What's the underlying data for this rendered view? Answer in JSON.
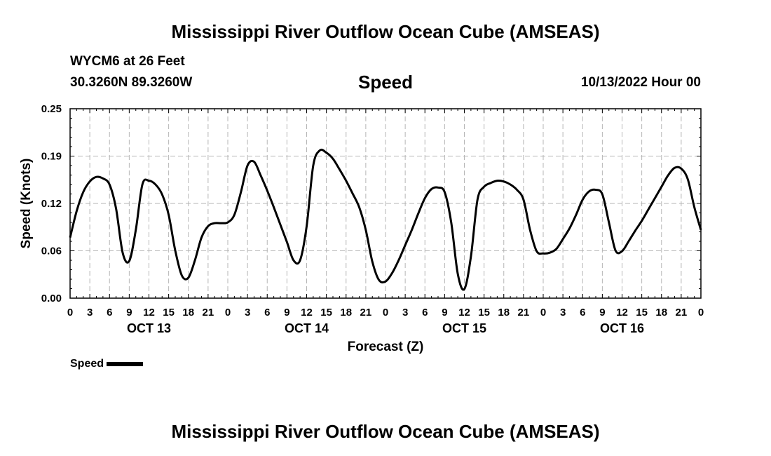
{
  "header": {
    "title": "Mississippi River Outflow Ocean Cube (AMSEAS)",
    "station": "WYCM6 at 26 Feet",
    "coords": "30.3260N  89.3260W",
    "plot_title": "Speed",
    "datetime": "10/13/2022 Hour 00"
  },
  "footer": {
    "title": "Mississippi River Outflow Ocean Cube (AMSEAS)"
  },
  "legend": {
    "label": "Speed",
    "color": "#000000"
  },
  "chart_data": {
    "type": "line",
    "xlabel": "Forecast (Z)",
    "ylabel": "Speed (Knots)",
    "xlim": [
      0,
      96
    ],
    "ylim": [
      0,
      0.25
    ],
    "y_ticks": [
      "0.00",
      "0.06",
      "0.12",
      "0.19",
      "0.25"
    ],
    "y_tick_values": [
      0,
      0.0625,
      0.125,
      0.1875,
      0.25
    ],
    "x_tick_labels": [
      "0",
      "3",
      "6",
      "9",
      "12",
      "15",
      "18",
      "21",
      "0",
      "3",
      "6",
      "9",
      "12",
      "15",
      "18",
      "21",
      "0",
      "3",
      "6",
      "9",
      "12",
      "15",
      "18",
      "21",
      "0",
      "3",
      "6",
      "9",
      "12",
      "15",
      "18",
      "21",
      "0"
    ],
    "day_labels": [
      {
        "label": "OCT 13",
        "x": 12
      },
      {
        "label": "OCT 14",
        "x": 36
      },
      {
        "label": "OCT 15",
        "x": 60
      },
      {
        "label": "OCT 16",
        "x": 84
      }
    ],
    "grid": true,
    "series": [
      {
        "name": "Speed",
        "color": "#000000",
        "x": [
          0,
          1,
          2,
          3,
          4,
          5,
          6,
          7,
          8,
          9,
          10,
          11,
          12,
          13,
          14,
          15,
          16,
          17,
          18,
          19,
          20,
          21,
          22,
          23,
          24,
          25,
          26,
          27,
          28,
          29,
          30,
          31,
          32,
          33,
          34,
          35,
          36,
          37,
          38,
          39,
          40,
          41,
          42,
          43,
          44,
          45,
          46,
          47,
          48,
          49,
          50,
          51,
          52,
          53,
          54,
          55,
          56,
          57,
          58,
          59,
          60,
          61,
          62,
          63,
          64,
          65,
          66,
          67,
          68,
          69,
          70,
          71,
          72,
          73,
          74,
          75,
          76,
          77,
          78,
          79,
          80,
          81,
          82,
          83,
          84,
          85,
          86,
          87,
          88,
          89,
          90,
          91,
          92,
          93,
          94,
          95,
          96
        ],
        "values": [
          0.08,
          0.115,
          0.14,
          0.154,
          0.16,
          0.158,
          0.15,
          0.118,
          0.06,
          0.049,
          0.09,
          0.15,
          0.155,
          0.15,
          0.137,
          0.11,
          0.063,
          0.03,
          0.027,
          0.05,
          0.08,
          0.095,
          0.099,
          0.099,
          0.1,
          0.11,
          0.14,
          0.175,
          0.18,
          0.162,
          0.142,
          0.12,
          0.097,
          0.074,
          0.05,
          0.05,
          0.095,
          0.175,
          0.195,
          0.192,
          0.184,
          0.17,
          0.155,
          0.138,
          0.12,
          0.09,
          0.048,
          0.024,
          0.022,
          0.033,
          0.05,
          0.07,
          0.09,
          0.112,
          0.132,
          0.144,
          0.146,
          0.14,
          0.1,
          0.032,
          0.012,
          0.055,
          0.13,
          0.147,
          0.152,
          0.155,
          0.154,
          0.15,
          0.143,
          0.13,
          0.09,
          0.062,
          0.059,
          0.06,
          0.065,
          0.078,
          0.092,
          0.11,
          0.13,
          0.141,
          0.143,
          0.137,
          0.1,
          0.063,
          0.062,
          0.075,
          0.089,
          0.102,
          0.117,
          0.132,
          0.147,
          0.162,
          0.172,
          0.171,
          0.157,
          0.12,
          0.09
        ]
      }
    ]
  }
}
